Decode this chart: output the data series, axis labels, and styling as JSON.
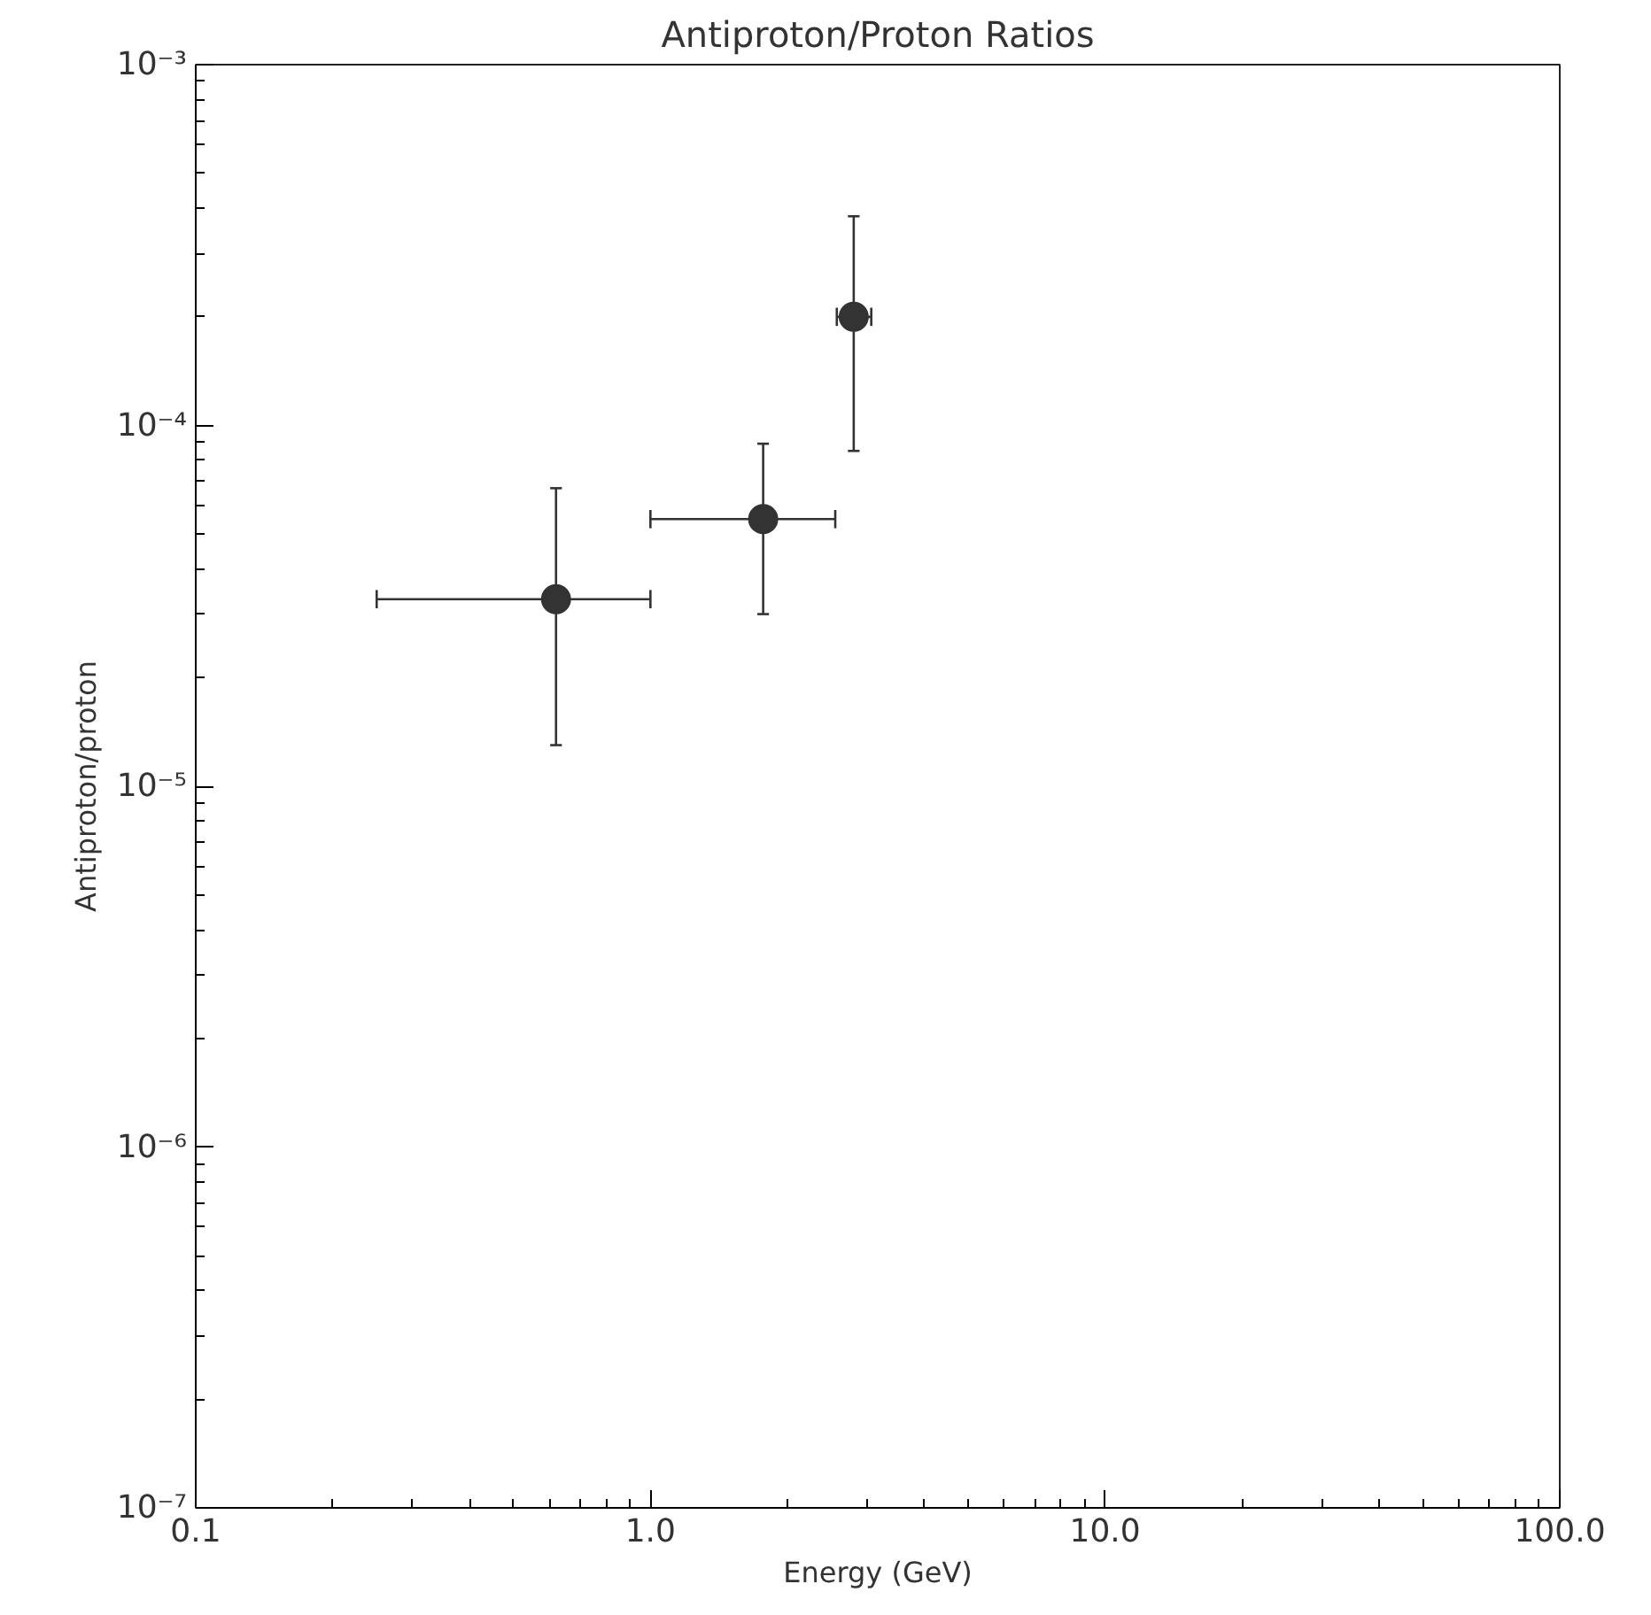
{
  "chart_data": {
    "type": "scatter",
    "title": "Antiproton/Proton Ratios",
    "xlabel": "Energy (GeV)",
    "ylabel": "Antiproton/proton",
    "x": [
      0.62,
      1.77,
      2.8
    ],
    "values": [
      3.3e-05,
      5.5e-05,
      0.0002
    ],
    "errors": [
      [
        1.3e-05,
        6.7e-05
      ],
      [
        3e-05,
        8.9e-05
      ],
      [
        8.5e-05,
        0.00038
      ]
    ],
    "xerrors": [
      [
        0.25,
        1.0
      ],
      [
        1.0,
        2.55
      ],
      [
        2.57,
        3.06
      ]
    ],
    "color": "#333333",
    "marker": "circle",
    "log": "xy",
    "grid": false,
    "xlim": [
      0.1,
      100
    ],
    "ylim": [
      1e-07,
      0.001
    ],
    "xticks": [
      {
        "value": 0.1,
        "label": "0.1"
      },
      {
        "value": 1,
        "label": "1.0"
      },
      {
        "value": 10,
        "label": "10.0"
      },
      {
        "value": 100,
        "label": "100.0"
      }
    ],
    "yticks": [
      {
        "value": 1e-07,
        "label": "10⁻⁷"
      },
      {
        "value": 1e-06,
        "label": "10⁻⁶"
      },
      {
        "value": 1e-05,
        "label": "10⁻⁵"
      },
      {
        "value": 0.0001,
        "label": "10⁻⁴"
      },
      {
        "value": 0.001,
        "label": "10⁻³"
      }
    ]
  }
}
